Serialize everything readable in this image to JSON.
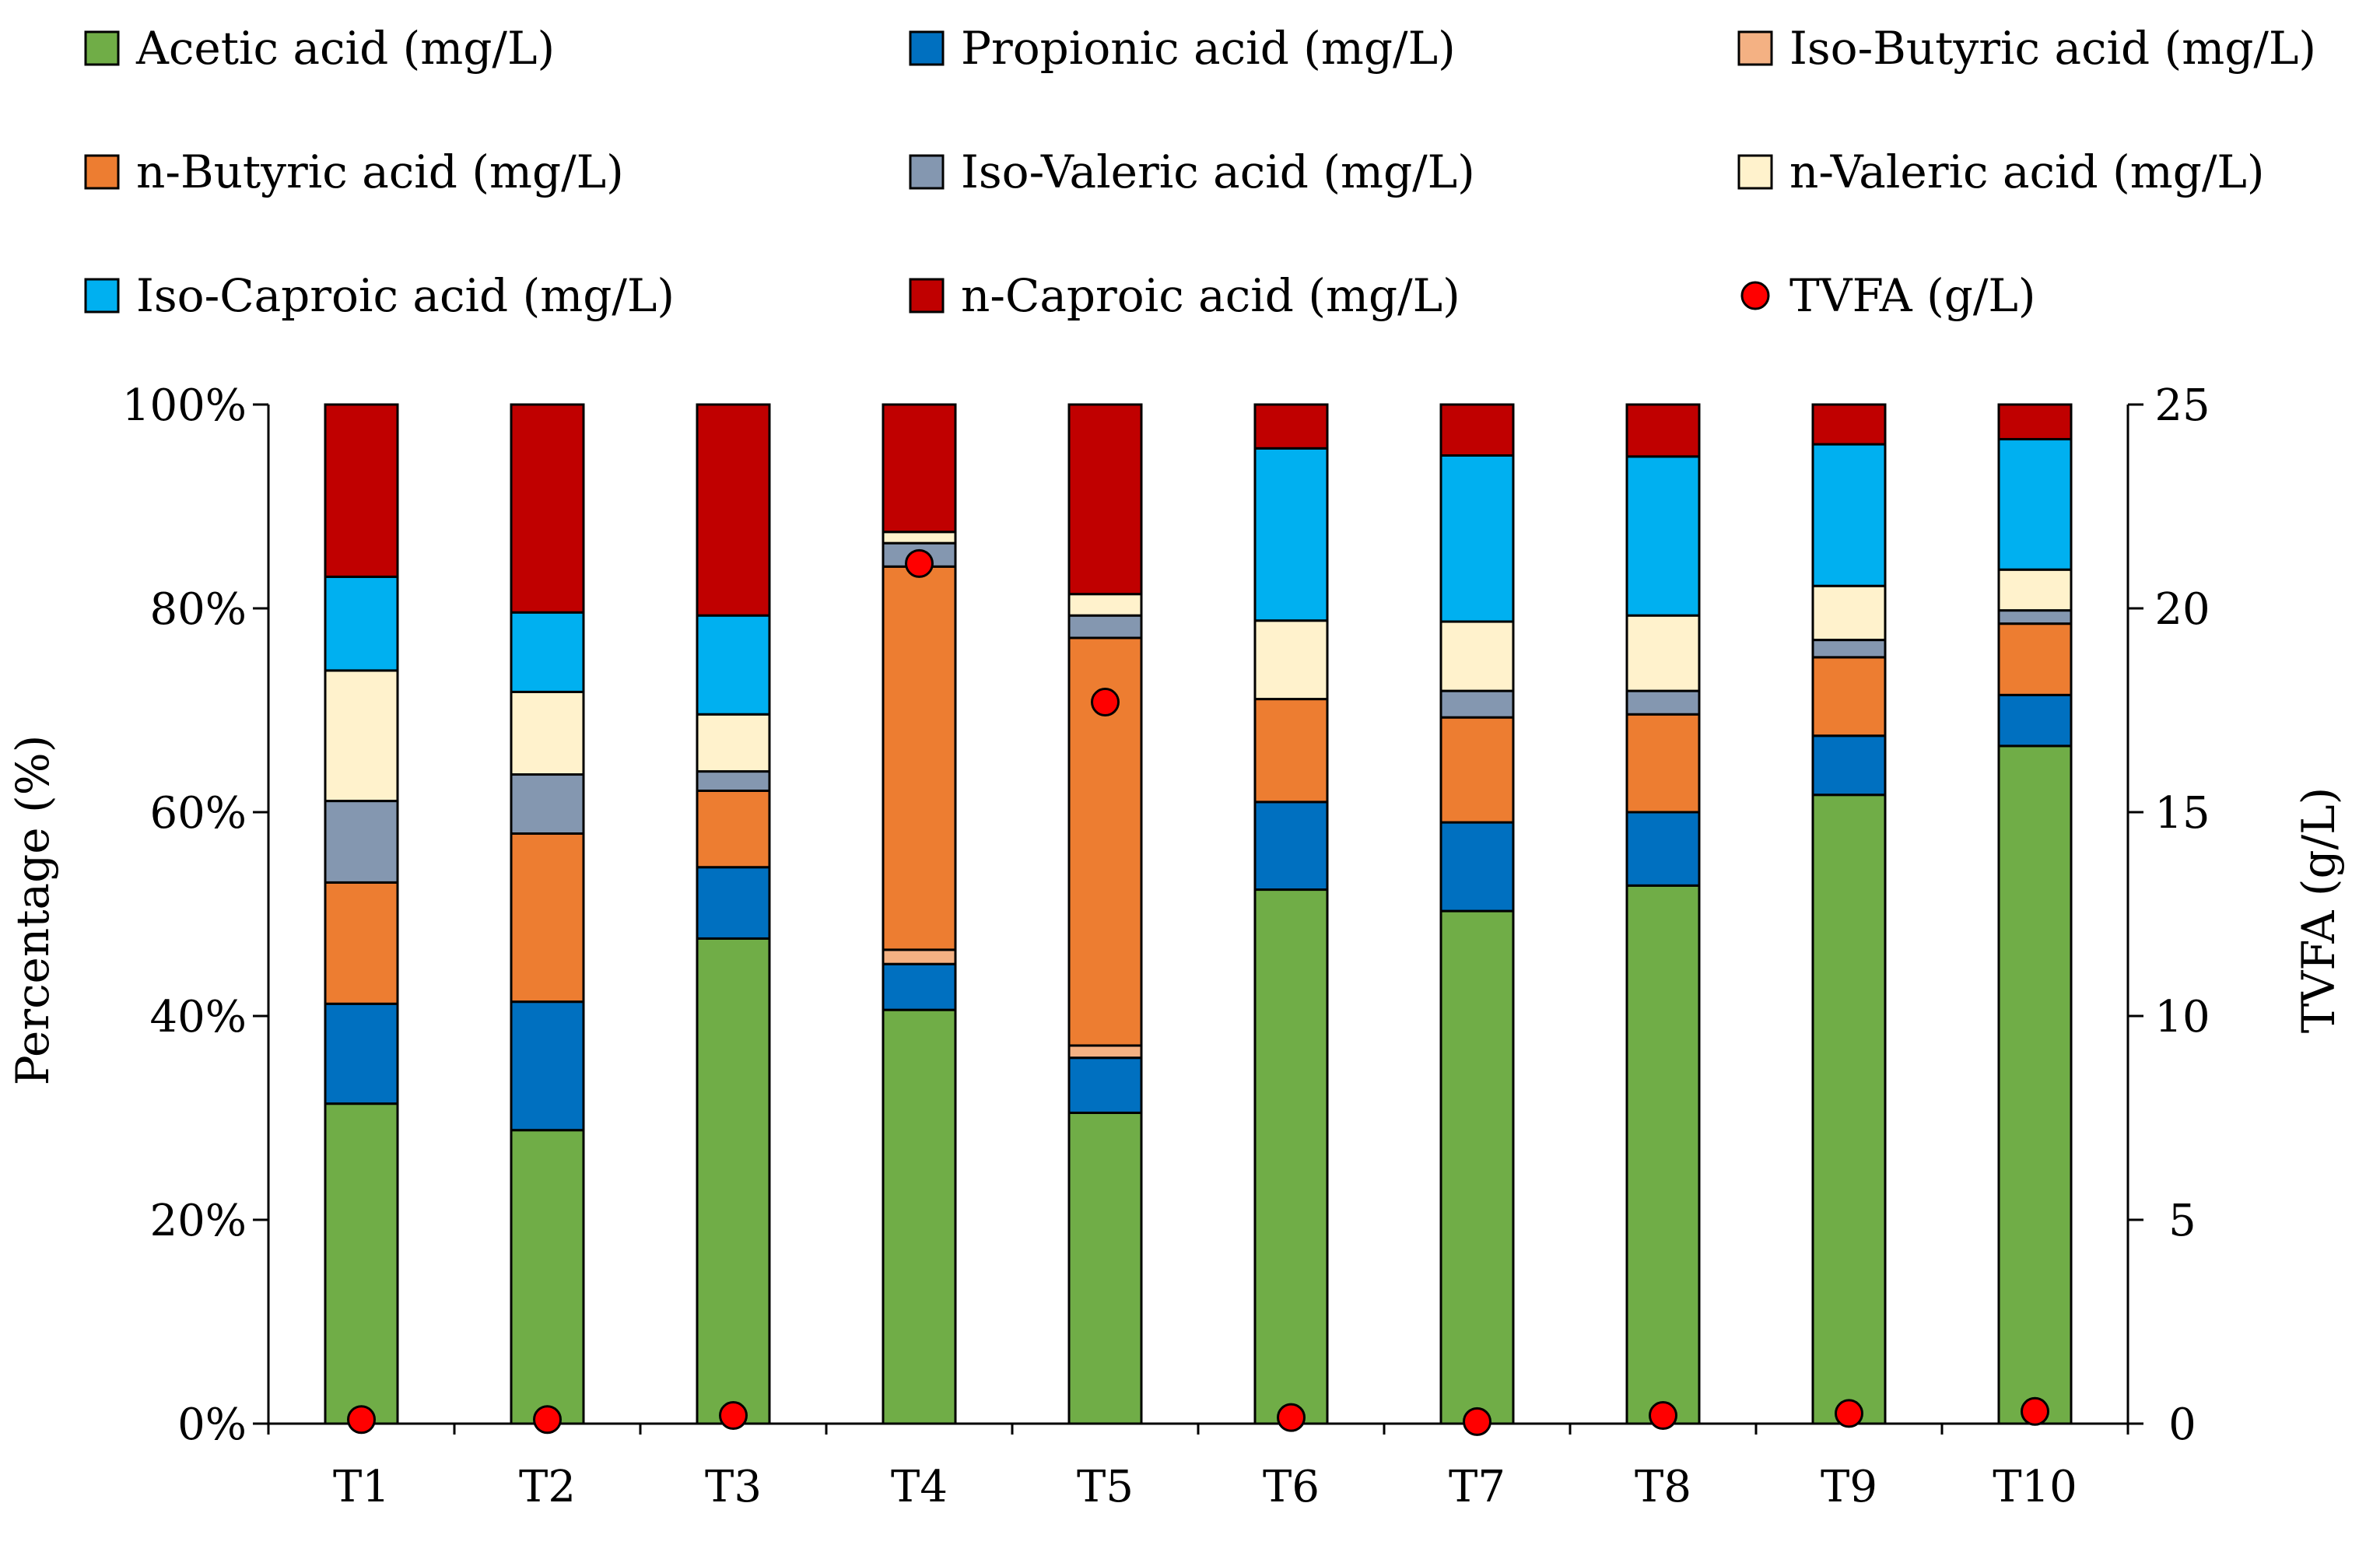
{
  "chart_data": {
    "type": "bar",
    "stacked": true,
    "percent_stacked": true,
    "categories": [
      "T1",
      "T2",
      "T3",
      "T4",
      "T5",
      "T6",
      "T7",
      "T8",
      "T9",
      "T10"
    ],
    "y_label": "Percentage (%)",
    "y2_label": "TVFA (g/L)",
    "y_ticks": [
      "0%",
      "20%",
      "40%",
      "60%",
      "80%",
      "100%"
    ],
    "y2_ticks": [
      "0",
      "5",
      "10",
      "15",
      "20",
      "25"
    ],
    "ylim": [
      0,
      100
    ],
    "y2lim": [
      0,
      25
    ],
    "legend_position": "top",
    "series": [
      {
        "name": "Acetic acid (mg/L)",
        "color": "#70ad47",
        "values": [
          31.4,
          28.8,
          47.6,
          40.6,
          30.5,
          52.4,
          50.3,
          52.8,
          61.7,
          66.5
        ]
      },
      {
        "name": "Propionic acid (mg/L)",
        "color": "#0070c0",
        "values": [
          9.8,
          12.6,
          7.0,
          4.5,
          5.4,
          8.6,
          8.7,
          7.2,
          5.8,
          5.0
        ]
      },
      {
        "name": "Iso-Butyric acid (mg/L)",
        "color": "#f4b183",
        "values": [
          0.0,
          0.0,
          0.0,
          1.4,
          1.2,
          0.0,
          0.0,
          0.0,
          0.0,
          0.0
        ]
      },
      {
        "name": "n-Butyric acid (mg/L)",
        "color": "#ed7d31",
        "values": [
          11.9,
          16.5,
          7.5,
          37.6,
          40.0,
          10.1,
          10.3,
          9.6,
          7.7,
          7.0
        ]
      },
      {
        "name": "Iso-Valeric acid (mg/L)",
        "color": "#8497b0",
        "values": [
          8.0,
          5.8,
          1.9,
          2.3,
          2.2,
          0.0,
          2.6,
          2.3,
          1.7,
          1.3
        ]
      },
      {
        "name": "n-Valeric acid (mg/L)",
        "color": "#fff2cc",
        "values": [
          12.8,
          8.1,
          5.6,
          1.1,
          2.1,
          7.7,
          6.8,
          7.4,
          5.3,
          4.0
        ]
      },
      {
        "name": "Iso-Caproic acid (mg/L)",
        "color": "#00b0f0",
        "values": [
          9.2,
          7.8,
          9.7,
          0.0,
          0.0,
          16.9,
          16.3,
          15.6,
          13.9,
          12.8
        ]
      },
      {
        "name": "n-Caproic acid (mg/L)",
        "color": "#c00000",
        "values": [
          16.9,
          20.4,
          20.7,
          12.5,
          18.6,
          4.3,
          5.0,
          5.1,
          3.9,
          3.4
        ]
      }
    ],
    "tvfa": {
      "name": "TVFA (g/L)",
      "color": "#ff0000",
      "values": [
        0.1,
        0.1,
        0.2,
        21.1,
        17.7,
        0.15,
        0.05,
        0.2,
        0.25,
        0.3
      ]
    }
  }
}
